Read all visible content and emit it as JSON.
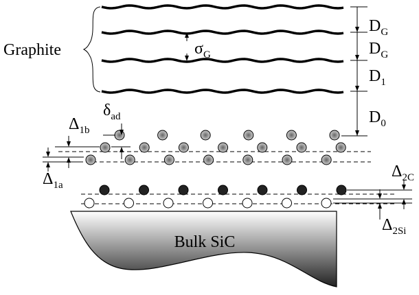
{
  "title": "Graphite",
  "bulk": "Bulk SiC",
  "labels": [
    {
      "symbol": "σ",
      "sub": "G"
    },
    {
      "symbol": "D",
      "sub": "G"
    },
    {
      "symbol": "D",
      "sub": "G"
    },
    {
      "symbol": "D",
      "sub": "1"
    },
    {
      "symbol": "D",
      "sub": "0"
    },
    {
      "symbol": "δ",
      "sub": "ad"
    },
    {
      "symbol": "Δ",
      "sub": "1b"
    },
    {
      "symbol": "Δ",
      "sub": "1a"
    },
    {
      "symbol": "Δ",
      "sub": "2C"
    },
    {
      "symbol": "Δ",
      "sub": "2Si"
    }
  ]
}
